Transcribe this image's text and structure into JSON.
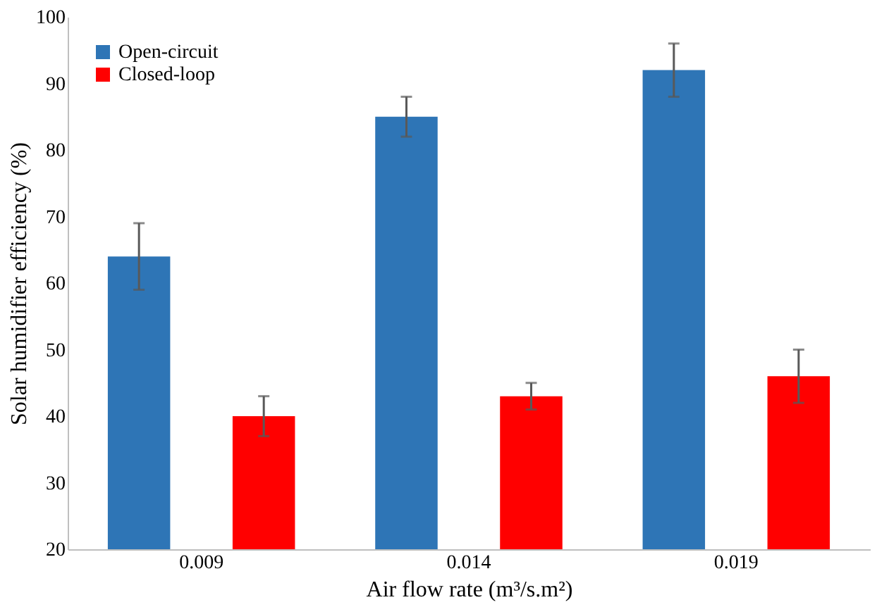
{
  "chart_data": {
    "type": "bar",
    "xlabel": "Air flow rate (m³/s.m²)",
    "ylabel": "Solar humidifier efficiency (%)",
    "categories": [
      "0.009",
      "0.014",
      "0.019"
    ],
    "series": [
      {
        "name": "Open-circuit",
        "color": "#2e75b6",
        "values": [
          64,
          85,
          92
        ],
        "errors": [
          [
            59,
            69
          ],
          [
            82,
            88
          ],
          [
            88,
            96
          ]
        ]
      },
      {
        "name": "Closed-loop",
        "color": "#ff0000",
        "values": [
          40,
          43,
          46
        ],
        "errors": [
          [
            37,
            43
          ],
          [
            41,
            45
          ],
          [
            42,
            50
          ]
        ]
      }
    ],
    "ylim": [
      20,
      100
    ],
    "yticks": [
      20,
      30,
      40,
      50,
      60,
      70,
      80,
      90,
      100
    ],
    "grid": false,
    "legend": "top left"
  }
}
